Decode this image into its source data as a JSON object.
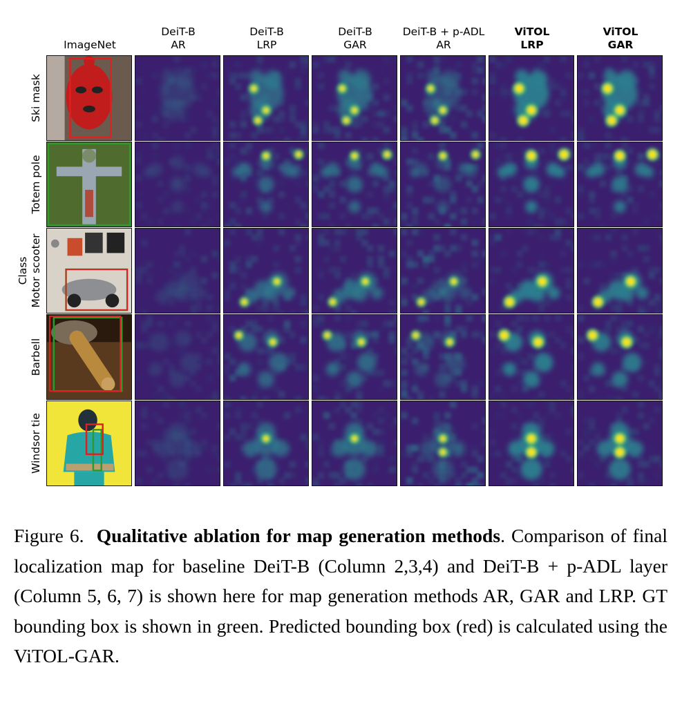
{
  "figure": {
    "columns": [
      {
        "line1": "ImageNet",
        "line2": "",
        "bold": false
      },
      {
        "line1": "DeiT-B",
        "line2": "AR",
        "bold": false
      },
      {
        "line1": "DeiT-B",
        "line2": "LRP",
        "bold": false
      },
      {
        "line1": "DeiT-B",
        "line2": "GAR",
        "bold": false
      },
      {
        "line1": "DeiT-B + p-ADL",
        "line2": "AR",
        "bold": false
      },
      {
        "line1": "ViTOL",
        "line2": "LRP",
        "bold": true
      },
      {
        "line1": "ViTOL",
        "line2": "GAR",
        "bold": true
      }
    ],
    "y_axis_label": "Class",
    "rows": [
      "Ski mask",
      "Totem pole",
      "Motor scooter",
      "Barbell",
      "Windsor tie"
    ],
    "colors": {
      "map_background": "#3b1f6e",
      "map_mid": "#2c7e8e",
      "map_high": "#49c16d",
      "map_peak": "#f4e61f",
      "gt_box": "#2e9a2e",
      "pred_box": "#e02020"
    }
  },
  "caption": {
    "label": "Figure 6.",
    "title": "Qualitative ablation for map generation methods",
    "body": ". Comparison of final localization map for baseline DeiT-B (Column 2,3,4) and DeiT-B + p-ADL layer (Column 5, 6, 7) is shown here for map generation methods AR, GAR and LRP. GT bounding box is shown in green. Predicted bounding box (red) is calculated using the ViTOL-GAR."
  }
}
